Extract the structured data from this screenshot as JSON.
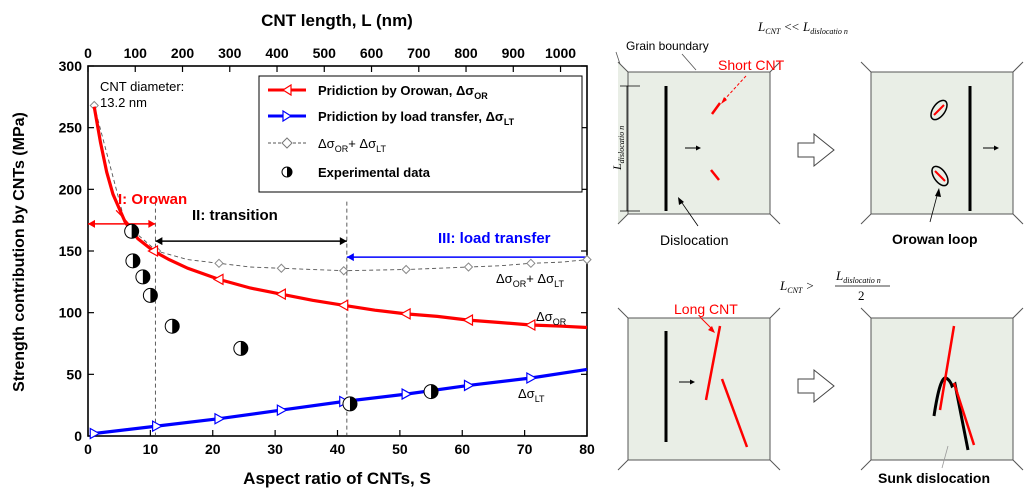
{
  "chart_data": {
    "type": "line",
    "top_axis": {
      "label": "CNT length, L (nm)",
      "ticks": [
        "0",
        "100",
        "200",
        "300",
        "400",
        "500",
        "600",
        "700",
        "800",
        "900",
        "1000"
      ]
    },
    "xlabel": "Aspect ratio of CNTs, S",
    "ylabel": "Strength contribution by CNTs (MPa)",
    "xlim": [
      0,
      80
    ],
    "ylim": [
      0,
      300
    ],
    "xticks": [
      0,
      10,
      20,
      30,
      40,
      50,
      60,
      70,
      80
    ],
    "yticks": [
      0,
      50,
      100,
      150,
      200,
      250,
      300
    ],
    "legend_position": "top-right",
    "diameter_note": [
      "CNT diameter:",
      "13.2 nm"
    ],
    "series": [
      {
        "name": "Pridiction by Orowan, Δσ",
        "name_sub": "OR",
        "color": "#ff0000",
        "x": [
          1,
          2,
          3,
          4,
          6,
          8,
          10.5,
          13,
          16,
          21,
          26,
          31,
          36,
          41,
          46,
          51,
          56,
          61,
          66,
          71,
          76,
          80
        ],
        "y": [
          267,
          238,
          214,
          196,
          173,
          160,
          150,
          143,
          136,
          127,
          120,
          115,
          110,
          106,
          102,
          99,
          97,
          94,
          92,
          90,
          89,
          88
        ]
      },
      {
        "name": "Pridiction by load transfer, Δσ",
        "name_sub": "LT",
        "color": "#0000ff",
        "x": [
          1,
          11,
          21,
          31,
          41,
          51,
          61,
          71,
          80
        ],
        "y": [
          2,
          8,
          14,
          21,
          28,
          34,
          41,
          47,
          54
        ]
      },
      {
        "name": "Δσ",
        "name_sub": "OR",
        "name_mid": "+ Δσ",
        "name_sub2": "LT",
        "color": "#555555",
        "x": [
          1,
          6,
          11,
          16,
          21,
          26,
          31,
          36,
          41,
          46,
          51,
          56,
          61,
          66,
          71,
          76,
          80
        ],
        "y": [
          268,
          172,
          150,
          143,
          140,
          137,
          136,
          135,
          134,
          134.5,
          135,
          136,
          137,
          138,
          140,
          141,
          143
        ]
      },
      {
        "name": "Experimental data",
        "type": "scatter",
        "x": [
          7,
          7.2,
          8.8,
          10,
          13.5,
          24.5,
          42,
          55
        ],
        "y": [
          166,
          142,
          129,
          114,
          89,
          71,
          26,
          36
        ]
      }
    ],
    "regions": [
      {
        "label": "I: Orowan",
        "color": "#ff0000"
      },
      {
        "label": "II: transition",
        "color": "#000000"
      },
      {
        "label": "III: load transfer",
        "color": "#0000ff"
      }
    ],
    "region_bounds": [
      0,
      10.8,
      41.5,
      80
    ],
    "curve_labels": [
      {
        "text": "Δσ",
        "sub": "OR",
        "mid": "+ Δσ",
        "sub2": "LT"
      },
      {
        "text": "Δσ",
        "sub": "OR"
      },
      {
        "text": "Δσ",
        "sub": "LT"
      }
    ]
  },
  "diagram": {
    "grain_boundary": "Grain boundary",
    "short_cnt": "Short CNT",
    "long_cnt": "Long CNT",
    "dislocation_label": "Dislocation",
    "orowan_loop": "Orowan loop",
    "sunk_dislocation": "Sunk dislocation",
    "l_dislocation_rot": "L",
    "l_dislocation_rot_sub": "dislocatio n",
    "eq1": {
      "lhs": "L",
      "lhs_sub": "CNT",
      "op": "<<",
      "rhs": "L",
      "rhs_sub": "dislocatio n"
    },
    "eq2": {
      "lhs": "L",
      "lhs_sub": "CNT",
      "op": ">",
      "num": "L",
      "num_sub": "dislocatio n",
      "den": "2"
    }
  }
}
